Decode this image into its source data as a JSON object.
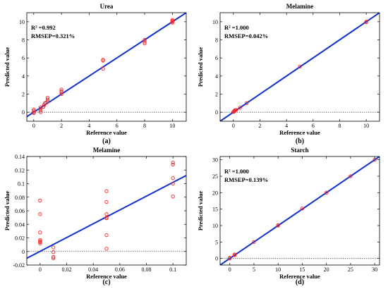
{
  "chart_data": [
    {
      "type": "scatter",
      "title": "Urea",
      "xlabel": "Reference value",
      "ylabel": "Predicted value",
      "sublabel": "(a)",
      "stats": {
        "r2": "R² =0.992",
        "rmsep": "RMSEP=0.321%"
      },
      "xlim": [
        -0.5,
        11
      ],
      "ylim": [
        -1,
        11
      ],
      "xticks": [
        0,
        2,
        4,
        6,
        8,
        10
      ],
      "yticks": [
        0,
        2,
        4,
        6,
        8,
        10
      ],
      "xtick_labels": [
        "0",
        "2",
        "4",
        "6",
        "8",
        "10"
      ],
      "ytick_labels": [
        "0",
        "2",
        "4",
        "6",
        "8",
        "10"
      ],
      "fit_line": {
        "x": [
          -0.5,
          11
        ],
        "y": [
          -0.5,
          11
        ]
      },
      "zero_line": 0,
      "series": [
        {
          "x": [
            0,
            0,
            0,
            0,
            0.5,
            0.5,
            0.5,
            0.5,
            0.7,
            0.75,
            0.8,
            0.9,
            1,
            1,
            1,
            2,
            2,
            2,
            2,
            5,
            5,
            5,
            8,
            8,
            8,
            10,
            10,
            10,
            10
          ],
          "y": [
            -0.1,
            0,
            0.15,
            0.3,
            0,
            0.2,
            0.4,
            0.55,
            0.6,
            0.8,
            1.0,
            1.05,
            1.2,
            1.4,
            1.6,
            2.0,
            2.2,
            2.3,
            2.5,
            4.8,
            5.7,
            5.8,
            7.6,
            7.8,
            8.0,
            9.9,
            10.0,
            10.1,
            10.2
          ]
        }
      ]
    },
    {
      "type": "scatter",
      "title": "Melamine",
      "xlabel": "Reference value",
      "ylabel": "Predicted value",
      "sublabel": "(b)",
      "stats": {
        "r2": "R² =1.000",
        "rmsep": "RMSEP=0.042%"
      },
      "xlim": [
        -1,
        11
      ],
      "ylim": [
        -1,
        11
      ],
      "xticks": [
        0,
        2,
        4,
        6,
        8,
        10
      ],
      "yticks": [
        0,
        2,
        4,
        6,
        8,
        10
      ],
      "xtick_labels": [
        "0",
        "2",
        "4",
        "6",
        "8",
        "10"
      ],
      "ytick_labels": [
        "0",
        "2",
        "4",
        "6",
        "8",
        "10"
      ],
      "fit_line": {
        "x": [
          -1,
          11
        ],
        "y": [
          -1,
          11
        ]
      },
      "zero_line": 0,
      "series": [
        {
          "x": [
            0,
            0.01,
            0.05,
            0.1,
            0.1,
            0.2,
            0.5,
            1,
            5,
            10,
            10
          ],
          "y": [
            0.02,
            0.05,
            0.1,
            0.15,
            0.2,
            0.25,
            0.5,
            1.0,
            5.05,
            9.95,
            10.0
          ]
        }
      ]
    },
    {
      "type": "scatter",
      "title": "Melamine",
      "xlabel": "Reference value",
      "ylabel": "Predicted value",
      "sublabel": "(c)",
      "stats": {
        "r2": "",
        "rmsep": ""
      },
      "xlim": [
        -0.01,
        0.11
      ],
      "ylim": [
        -0.02,
        0.14
      ],
      "xticks": [
        0,
        0.02,
        0.04,
        0.06,
        0.08,
        0.1
      ],
      "yticks": [
        -0.02,
        0,
        0.02,
        0.04,
        0.06,
        0.08,
        0.1,
        0.12,
        0.14
      ],
      "xtick_labels": [
        "0",
        "0.02",
        "0.04",
        "0.06",
        "0.08",
        "0.1"
      ],
      "ytick_labels": [
        "-0.02",
        "0",
        "0.02",
        "0.04",
        "0.06",
        "0.08",
        "0.1",
        "0.12",
        "0.14"
      ],
      "fit_line": {
        "x": [
          -0.01,
          0.11
        ],
        "y": [
          -0.01,
          0.112
        ]
      },
      "zero_line": 0,
      "series": [
        {
          "x": [
            0,
            0,
            0,
            0,
            0,
            0,
            0,
            0.01,
            0.01,
            0.01,
            0.01,
            0.05,
            0.05,
            0.05,
            0.05,
            0.05,
            0.05,
            0.05,
            0.1,
            0.1,
            0.1,
            0.1,
            0.1
          ],
          "y": [
            0.075,
            0.055,
            0.028,
            0.017,
            0.015,
            0.014,
            0.012,
            0.006,
            -0.001,
            -0.008,
            -0.01,
            0.089,
            0.073,
            0.055,
            0.05,
            0.024,
            0.004,
            0.049,
            0.131,
            0.128,
            0.108,
            0.1,
            0.081
          ]
        }
      ]
    },
    {
      "type": "scatter",
      "title": "Starch",
      "xlabel": "Reference value",
      "ylabel": "Predicted value",
      "sublabel": "(d)",
      "stats": {
        "r2": "R² =1.000",
        "rmsep": "RMSEP=0.139%"
      },
      "xlim": [
        -2,
        31
      ],
      "ylim": [
        -2,
        31
      ],
      "xticks": [
        0,
        5,
        10,
        15,
        20,
        25,
        30
      ],
      "yticks": [
        0,
        5,
        10,
        15,
        20,
        25,
        30
      ],
      "xtick_labels": [
        "0",
        "5",
        "10",
        "15",
        "20",
        "25",
        "30"
      ],
      "ytick_labels": [
        "0",
        "5",
        "10",
        "15",
        "20",
        "25",
        "30"
      ],
      "fit_line": {
        "x": [
          -2,
          31
        ],
        "y": [
          -2,
          31
        ]
      },
      "zero_line": 0,
      "series": [
        {
          "x": [
            0,
            0,
            1,
            1,
            5,
            10,
            10,
            15,
            20,
            25,
            30
          ],
          "y": [
            0,
            0.2,
            1.0,
            1.2,
            5.0,
            10.0,
            10.1,
            15.2,
            20.0,
            25.0,
            30.0
          ]
        }
      ]
    }
  ],
  "colors": {
    "markers": "#ff2222",
    "fit_line": "#1133cc",
    "zero_line": "#555555",
    "axes": "#000000"
  }
}
